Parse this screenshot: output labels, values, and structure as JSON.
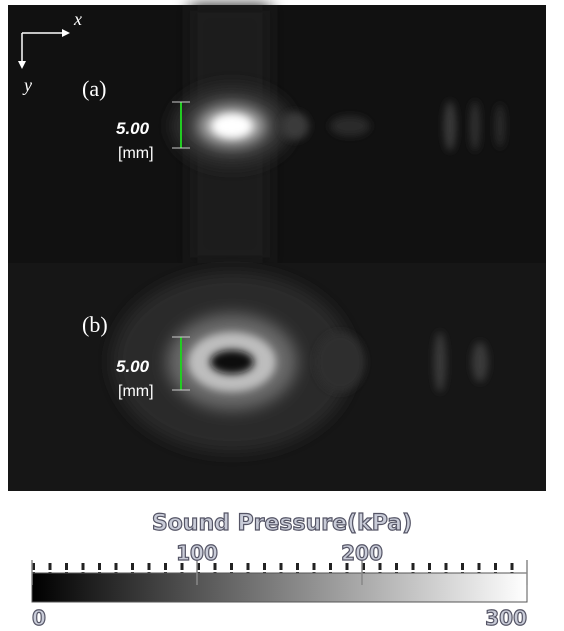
{
  "axes": {
    "x": "x",
    "y": "y"
  },
  "panels": [
    {
      "label": "(a)",
      "scale_value": "5.00",
      "scale_unit": "[mm]"
    },
    {
      "label": "(b)",
      "scale_value": "5.00",
      "scale_unit": "[mm]"
    }
  ],
  "colorbar": {
    "title": "Sound Pressure(kPa)",
    "lim": [
      0,
      300
    ],
    "ticks": [
      0,
      100,
      200,
      300
    ]
  }
}
